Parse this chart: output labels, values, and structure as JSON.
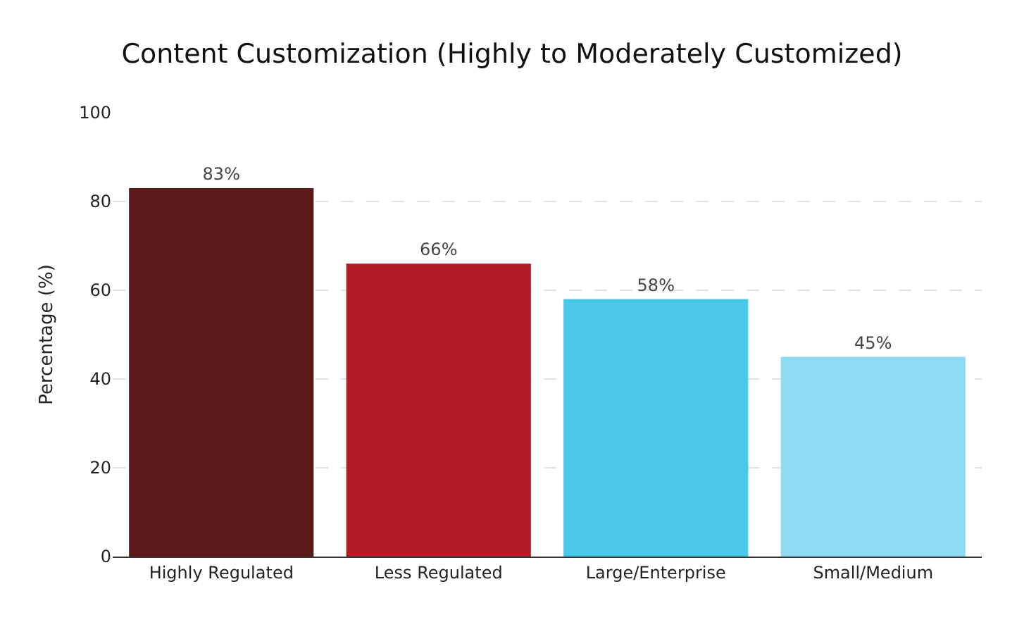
{
  "chart_data": {
    "type": "bar",
    "title": "Content Customization (Highly to Moderately Customized)",
    "ylabel": "Percentage (%)",
    "categories": [
      "Highly Regulated",
      "Less Regulated",
      "Large/Enterprise",
      "Small/Medium"
    ],
    "values": [
      83,
      66,
      58,
      45
    ],
    "colors": [
      "#5c1a1a",
      "#b31b25",
      "#4ac8e8",
      "#8fd9f2"
    ],
    "value_labels": [
      "83%",
      "66%",
      "58%",
      "45%"
    ],
    "ylim": [
      0,
      100
    ],
    "yticks": [
      0,
      20,
      40,
      60,
      80,
      100
    ],
    "grid": "y",
    "legend": false
  }
}
